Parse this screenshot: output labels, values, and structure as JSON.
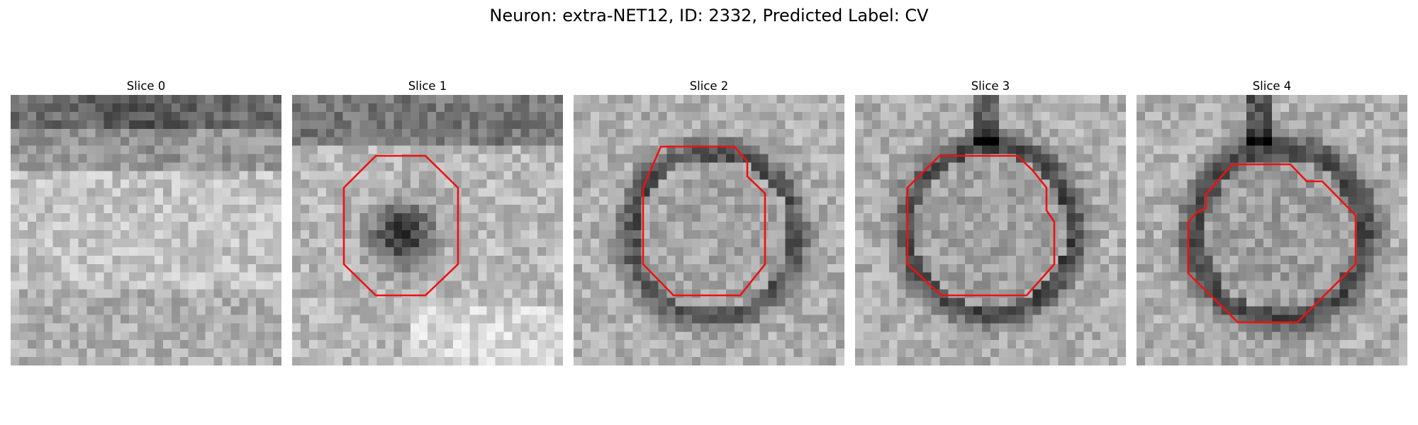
{
  "figure": {
    "title": "Neuron: extra-NET12, ID: 2332, Predicted Label: CV",
    "contour_color": "#ee1111"
  },
  "slices": [
    {
      "title": "Slice 0",
      "has_contour": false
    },
    {
      "title": "Slice 1",
      "has_contour": true
    },
    {
      "title": "Slice 2",
      "has_contour": true
    },
    {
      "title": "Slice 3",
      "has_contour": true
    },
    {
      "title": "Slice 4",
      "has_contour": true
    }
  ]
}
